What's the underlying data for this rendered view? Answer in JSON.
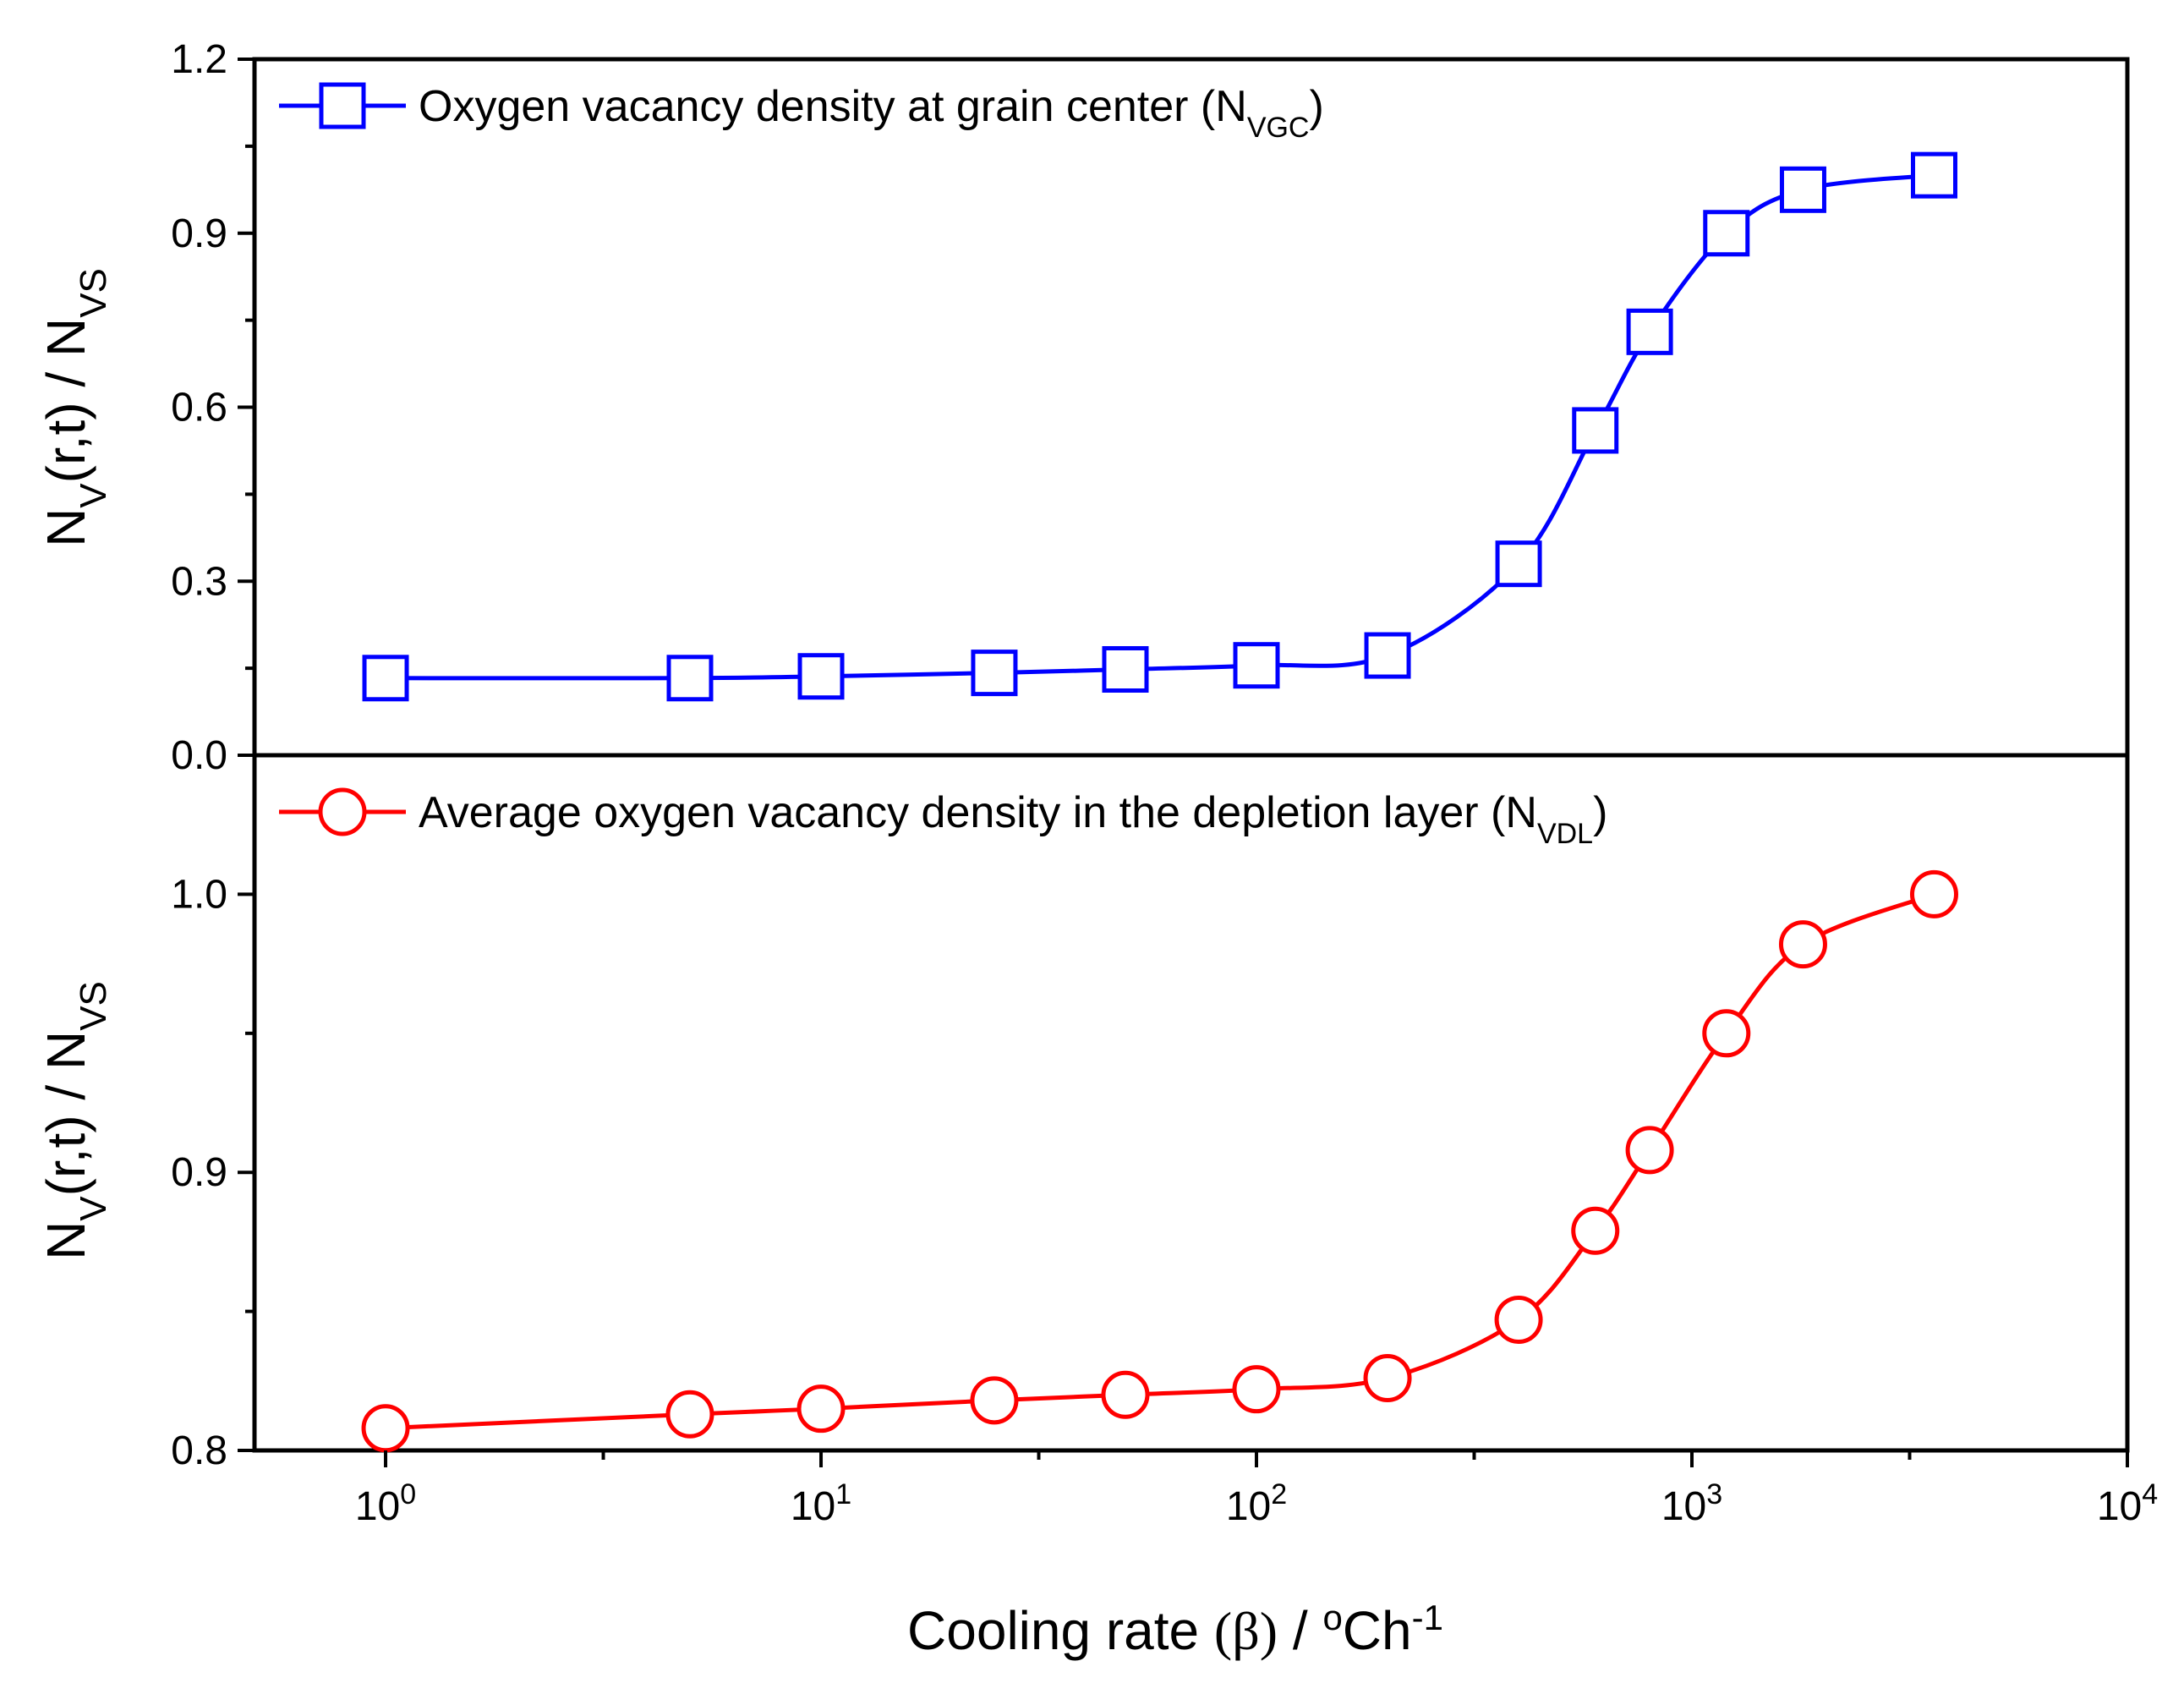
{
  "chart_data": [
    {
      "type": "line",
      "panel": "top",
      "x_scale": "log",
      "ylim": [
        0.0,
        1.2
      ],
      "yticks": [
        0.0,
        0.3,
        0.6,
        0.9,
        1.2
      ],
      "ytick_labels": [
        "0.0",
        "0.3",
        "0.6",
        "0.9",
        "1.2"
      ],
      "ylabel": {
        "main": "N",
        "sub1": "V",
        "mid": "(r,t) / N",
        "sub2": "VS"
      },
      "legend_position": "top-left",
      "series": [
        {
          "name": "Oxygen vacancy density at grain center (N",
          "name_sub": "VGC",
          "name_end": ")",
          "color": "#0000ff",
          "marker": "square",
          "x": [
            1,
            5,
            10,
            25,
            50,
            100,
            200,
            400,
            600,
            800,
            1200,
            1800,
            3600
          ],
          "values": [
            0.133,
            0.133,
            0.136,
            0.142,
            0.148,
            0.155,
            0.172,
            0.33,
            0.56,
            0.73,
            0.9,
            0.975,
            1.0
          ]
        }
      ]
    },
    {
      "type": "line",
      "panel": "bottom",
      "x_scale": "log",
      "ylim": [
        0.8,
        1.05
      ],
      "yticks": [
        0.8,
        0.9,
        1.0
      ],
      "ytick_labels": [
        "0.8",
        "0.9",
        "1.0"
      ],
      "ylabel": {
        "main": "N",
        "sub1": "V",
        "mid": "(r,t) / N",
        "sub2": "VS"
      },
      "legend_position": "top-left",
      "series": [
        {
          "name": "Average oxygen vacancy density in the depletion layer (N",
          "name_sub": "VDL",
          "name_end": ")",
          "color": "#ff0000",
          "marker": "circle",
          "x": [
            1,
            5,
            10,
            25,
            50,
            100,
            200,
            400,
            600,
            800,
            1200,
            1800,
            3600
          ],
          "values": [
            0.808,
            0.813,
            0.815,
            0.818,
            0.82,
            0.822,
            0.826,
            0.847,
            0.879,
            0.908,
            0.95,
            0.982,
            1.0
          ]
        }
      ]
    }
  ],
  "x_axis": {
    "xlim": [
      0.5,
      10000
    ],
    "ticks": [
      1,
      10,
      100,
      1000,
      10000
    ],
    "tick_base": "10",
    "tick_exponents": [
      "0",
      "1",
      "2",
      "3",
      "4"
    ],
    "title_start": "Cooling rate ",
    "title_beta": "(β)",
    "title_mid": " / ",
    "title_degree": "o",
    "title_unit": "Ch",
    "title_exp": "-1"
  }
}
